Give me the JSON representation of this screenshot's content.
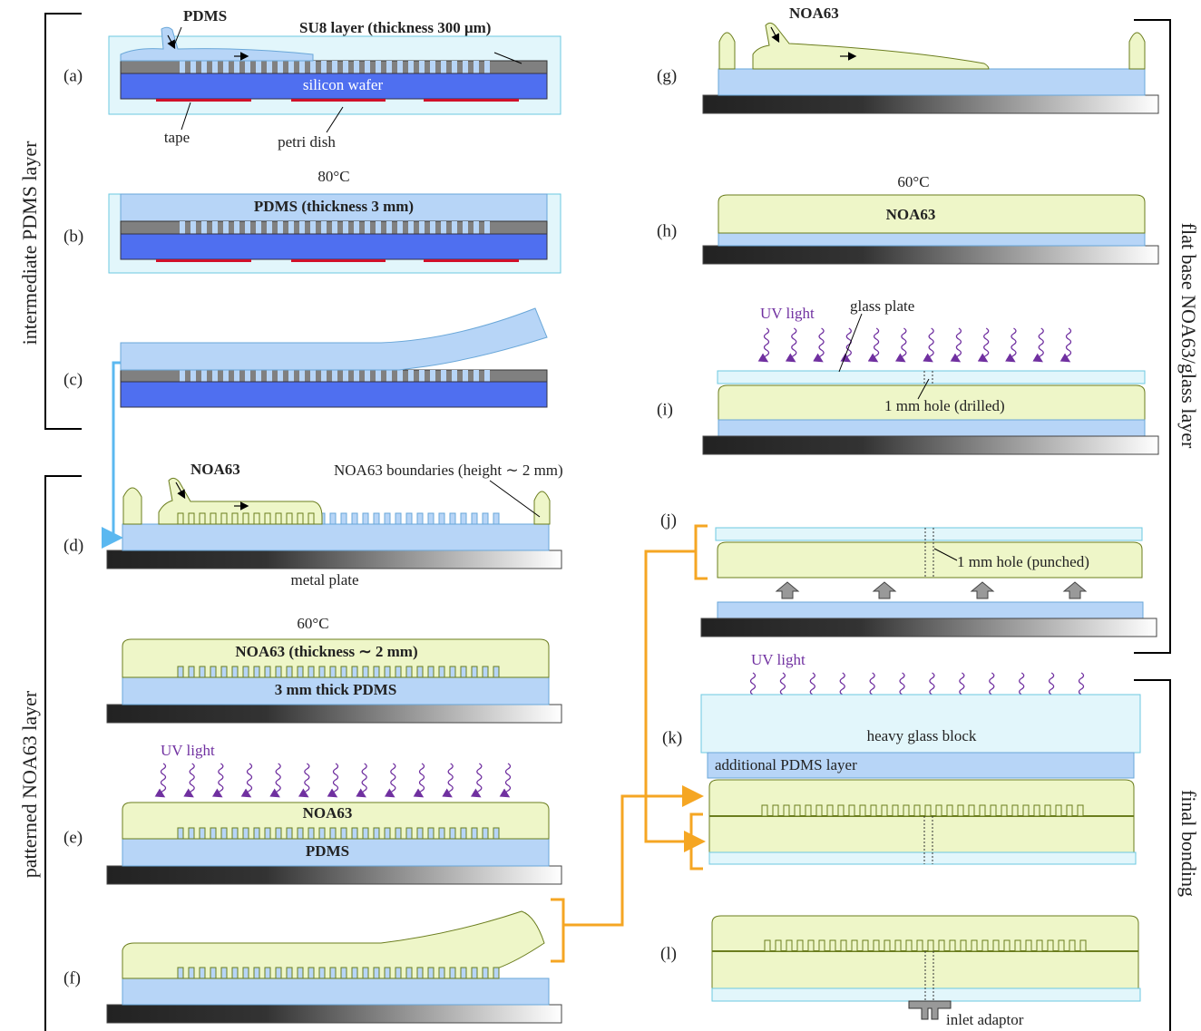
{
  "sections": [
    "intermediate PDMS layer",
    "patterned NOA63 layer",
    "flat base NOA63/glass layer",
    "final bonding"
  ],
  "panels": [
    {
      "label": "(a)",
      "annotations": [
        "PDMS",
        "SU8 layer (thickness 300 μm)",
        "silicon wafer",
        "tape",
        "petri dish"
      ]
    },
    {
      "label": "(b)",
      "annotations": [
        "80°C",
        "PDMS (thickness 3 mm)"
      ]
    },
    {
      "label": "(c)"
    },
    {
      "label": "(d)",
      "annotations": [
        "NOA63",
        "NOA63 boundaries (height ∼ 2 mm)",
        "metal plate"
      ]
    },
    {
      "annotations": [
        "60°C",
        "NOA63 (thickness ∼ 2 mm)",
        "3 mm thick PDMS"
      ]
    },
    {
      "label": "(e)",
      "annotations": [
        "UV light",
        "NOA63",
        "PDMS"
      ]
    },
    {
      "label": "(f)"
    },
    {
      "label": "(g)",
      "annotations": [
        "NOA63"
      ]
    },
    {
      "label": "(h)",
      "annotations": [
        "60°C",
        "NOA63"
      ]
    },
    {
      "label": "(i)",
      "annotations": [
        "UV light",
        "glass plate",
        "1 mm hole (drilled)"
      ]
    },
    {
      "label": "(j)",
      "annotations": [
        "1 mm hole (punched)"
      ]
    },
    {
      "label": "(k)",
      "annotations": [
        "UV light",
        "heavy glass block",
        "additional PDMS layer"
      ]
    },
    {
      "label": "(l)",
      "annotations": [
        "inlet adaptor"
      ]
    }
  ]
}
